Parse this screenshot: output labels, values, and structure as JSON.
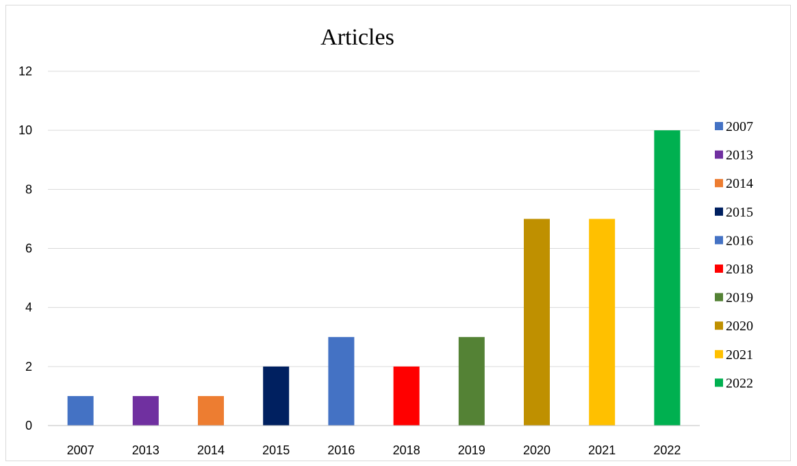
{
  "chart_data": {
    "type": "bar",
    "title": "Articles",
    "xlabel": "",
    "ylabel": "",
    "categories": [
      "2007",
      "2013",
      "2014",
      "2015",
      "2016",
      "2018",
      "2019",
      "2020",
      "2021",
      "2022"
    ],
    "values": [
      1,
      1,
      1,
      2,
      3,
      2,
      3,
      7,
      7,
      10
    ],
    "colors": [
      "#4472c4",
      "#7030a0",
      "#ed7d31",
      "#002060",
      "#4472c4",
      "#ff0000",
      "#548235",
      "#bf9000",
      "#ffc000",
      "#00b050"
    ],
    "ylim": [
      0,
      12
    ],
    "yticks": [
      "0",
      "2",
      "4",
      "6",
      "8",
      "10",
      "12"
    ],
    "grid": true,
    "legend": {
      "placement": "right",
      "entries": [
        "2007",
        "2013",
        "2014",
        "2015",
        "2016",
        "2018",
        "2019",
        "2020",
        "2021",
        "2022"
      ]
    }
  }
}
